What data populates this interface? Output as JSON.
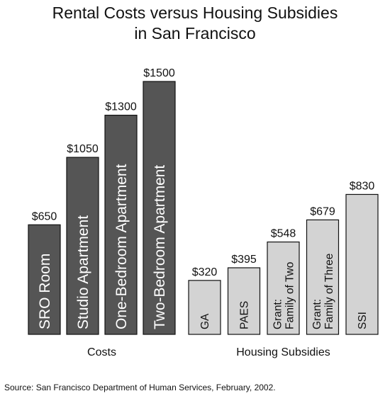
{
  "chart_data": {
    "type": "bar",
    "title_line1": "Rental Costs versus Housing Subsidies",
    "title_line2": "in San Francisco",
    "ylim": [
      0,
      1500
    ],
    "grid": false,
    "groups": [
      {
        "name": "Costs",
        "color": "#555555",
        "label_color": "#ffffff",
        "bars": [
          {
            "label": [
              "SRO Room"
            ],
            "value": 650,
            "value_label": "$650"
          },
          {
            "label": [
              "Studio Apartment"
            ],
            "value": 1050,
            "value_label": "$1050"
          },
          {
            "label": [
              "One-Bedroom Apartment"
            ],
            "value": 1300,
            "value_label": "$1300"
          },
          {
            "label": [
              "Two-Bedroom Apartment"
            ],
            "value": 1500,
            "value_label": "$1500"
          }
        ]
      },
      {
        "name": "Housing Subsidies",
        "color": "#d3d3d3",
        "label_color": "#111111",
        "bars": [
          {
            "label": [
              "GA"
            ],
            "value": 320,
            "value_label": "$320"
          },
          {
            "label": [
              "PAES"
            ],
            "value": 395,
            "value_label": "$395"
          },
          {
            "label": [
              "Grant:",
              "Family of Two"
            ],
            "value": 548,
            "value_label": "$548"
          },
          {
            "label": [
              "Grant:",
              "Family of Three"
            ],
            "value": 679,
            "value_label": "$679"
          },
          {
            "label": [
              "SSI"
            ],
            "value": 830,
            "value_label": "$830"
          }
        ]
      }
    ]
  },
  "source": "Source:  San Francisco Department of Human Services, February, 2002."
}
